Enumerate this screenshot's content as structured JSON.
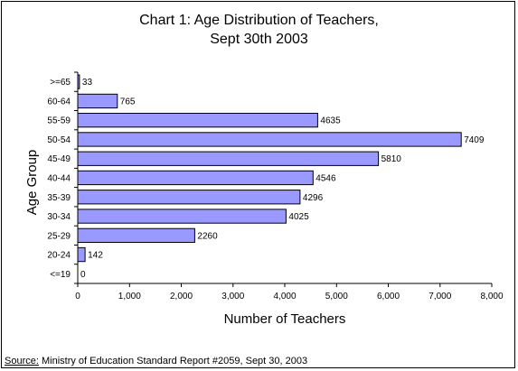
{
  "chart_data": {
    "type": "bar",
    "orientation": "horizontal",
    "title_line1": "Chart 1: Age Distribution of Teachers,",
    "title_line2": "Sept 30th 2003",
    "xlabel": "Number of Teachers",
    "ylabel": "Age Group",
    "xlim": [
      0,
      8000
    ],
    "xticks": [
      "0",
      "1,000",
      "2,000",
      "3,000",
      "4,000",
      "5,000",
      "6,000",
      "7,000",
      "8,000"
    ],
    "categories": [
      ">=65",
      "60-64",
      "55-59",
      "50-54",
      "45-49",
      "40-44",
      "35-39",
      "30-34",
      "25-29",
      "20-24",
      "<=19"
    ],
    "values": [
      33,
      765,
      4635,
      7409,
      5810,
      4546,
      4296,
      4025,
      2260,
      142,
      0
    ],
    "bar_color": "#9999ff",
    "grid": false,
    "legend": "none"
  },
  "source": {
    "label": "Source:",
    "text": " Ministry of Education Standard Report #2059, Sept 30, 2003"
  }
}
